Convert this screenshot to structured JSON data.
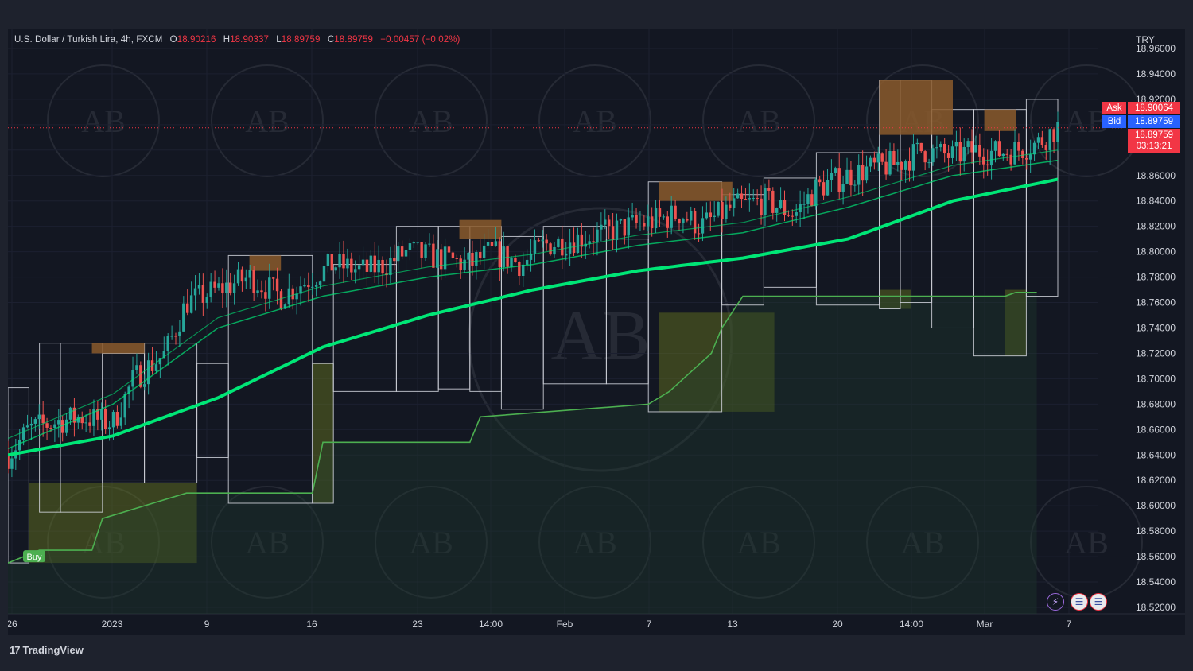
{
  "legend": {
    "symbol": "U.S. Dollar / Turkish Lira, 4h, FXCM",
    "o_label": "O",
    "o": "18.90216",
    "h_label": "H",
    "h": "18.90337",
    "l_label": "L",
    "l": "18.89759",
    "c_label": "C",
    "c": "18.89759",
    "change": "−0.00457 (−0.02%)"
  },
  "price_scale": {
    "currency": "TRY",
    "ask_label": "Ask",
    "ask": "18.90064",
    "bid_label": "Bid",
    "bid": "18.89759",
    "last": "18.89759",
    "countdown": "03:13:21"
  },
  "branding": {
    "logo_text": "TradingView",
    "watermark": "AB"
  },
  "signal": {
    "label": "Buy"
  },
  "colors": {
    "background": "#131722",
    "up": "#26a69a",
    "down": "#ef5350",
    "ma": "#00e676",
    "box_border": "#d1d4dc",
    "zone_resistance": "#8b5a2b",
    "zone_support": "#6b7a1e"
  },
  "chart_data": {
    "type": "candlestick",
    "title": "U.S. Dollar / Turkish Lira, 4h, FXCM",
    "x_ticks": [
      "26",
      "2023",
      "9",
      "16",
      "23",
      "14:00",
      "Feb",
      "7",
      "13",
      "20",
      "14:00",
      "Mar",
      "7"
    ],
    "y_ticks": [
      "18.96000",
      "18.94000",
      "18.92000",
      "18.90000",
      "18.88000",
      "18.86000",
      "18.84000",
      "18.82000",
      "18.80000",
      "18.78000",
      "18.76000",
      "18.74000",
      "18.72000",
      "18.70000",
      "18.68000",
      "18.66000",
      "18.64000",
      "18.62000",
      "18.60000",
      "18.58000",
      "18.56000",
      "18.54000",
      "18.52000"
    ],
    "ylim": [
      18.515,
      18.975
    ],
    "close_path": [
      [
        0.0,
        18.64
      ],
      [
        0.02,
        18.66
      ],
      [
        0.04,
        18.665
      ],
      [
        0.07,
        18.67
      ],
      [
        0.1,
        18.665
      ],
      [
        0.12,
        18.7
      ],
      [
        0.15,
        18.72
      ],
      [
        0.17,
        18.76
      ],
      [
        0.2,
        18.77
      ],
      [
        0.23,
        18.78
      ],
      [
        0.26,
        18.765
      ],
      [
        0.29,
        18.78
      ],
      [
        0.31,
        18.79
      ],
      [
        0.34,
        18.785
      ],
      [
        0.36,
        18.79
      ],
      [
        0.38,
        18.8
      ],
      [
        0.41,
        18.795
      ],
      [
        0.44,
        18.79
      ],
      [
        0.46,
        18.8
      ],
      [
        0.49,
        18.79
      ],
      [
        0.51,
        18.805
      ],
      [
        0.54,
        18.81
      ],
      [
        0.57,
        18.815
      ],
      [
        0.59,
        18.82
      ],
      [
        0.62,
        18.825
      ],
      [
        0.64,
        18.83
      ],
      [
        0.66,
        18.82
      ],
      [
        0.69,
        18.835
      ],
      [
        0.72,
        18.84
      ],
      [
        0.75,
        18.83
      ],
      [
        0.77,
        18.85
      ],
      [
        0.8,
        18.86
      ],
      [
        0.82,
        18.865
      ],
      [
        0.85,
        18.87
      ],
      [
        0.87,
        18.88
      ],
      [
        0.9,
        18.875
      ],
      [
        0.92,
        18.88
      ],
      [
        0.94,
        18.878
      ],
      [
        0.96,
        18.88
      ],
      [
        0.98,
        18.885
      ],
      [
        1.0,
        18.898
      ]
    ],
    "ma_slow": [
      [
        0.0,
        18.64
      ],
      [
        0.1,
        18.655
      ],
      [
        0.2,
        18.685
      ],
      [
        0.3,
        18.725
      ],
      [
        0.4,
        18.75
      ],
      [
        0.5,
        18.77
      ],
      [
        0.6,
        18.785
      ],
      [
        0.7,
        18.795
      ],
      [
        0.8,
        18.81
      ],
      [
        0.9,
        18.84
      ],
      [
        1.0,
        18.857
      ]
    ],
    "ma_mid": [
      [
        0.0,
        18.645
      ],
      [
        0.1,
        18.68
      ],
      [
        0.2,
        18.74
      ],
      [
        0.3,
        18.765
      ],
      [
        0.4,
        18.78
      ],
      [
        0.5,
        18.79
      ],
      [
        0.6,
        18.805
      ],
      [
        0.7,
        18.815
      ],
      [
        0.8,
        18.835
      ],
      [
        0.9,
        18.86
      ],
      [
        1.0,
        18.872
      ]
    ],
    "support_step": [
      [
        0.0,
        18.555
      ],
      [
        0.03,
        18.565
      ],
      [
        0.08,
        18.565
      ],
      [
        0.09,
        18.59
      ],
      [
        0.17,
        18.61
      ],
      [
        0.29,
        18.61
      ],
      [
        0.3,
        18.65
      ],
      [
        0.44,
        18.65
      ],
      [
        0.45,
        18.67
      ],
      [
        0.61,
        18.68
      ],
      [
        0.63,
        18.69
      ],
      [
        0.67,
        18.72
      ],
      [
        0.68,
        18.74
      ],
      [
        0.7,
        18.765
      ],
      [
        0.95,
        18.765
      ],
      [
        0.96,
        18.768
      ],
      [
        0.98,
        18.768
      ]
    ],
    "resistance_zones": [
      [
        0.08,
        0.13,
        18.728,
        18.72
      ],
      [
        0.23,
        0.26,
        18.797,
        18.785
      ],
      [
        0.43,
        0.47,
        18.825,
        18.81
      ],
      [
        0.62,
        0.69,
        18.855,
        18.84
      ],
      [
        0.83,
        0.9,
        18.935,
        18.892
      ],
      [
        0.93,
        0.96,
        18.912,
        18.895
      ]
    ],
    "support_zones": [
      [
        0.02,
        0.18,
        18.618,
        18.555
      ],
      [
        0.29,
        0.31,
        18.712,
        18.602
      ],
      [
        0.62,
        0.73,
        18.752,
        18.674
      ],
      [
        0.83,
        0.86,
        18.77,
        18.755
      ],
      [
        0.95,
        0.97,
        18.77,
        18.718
      ]
    ],
    "legend": "none",
    "grid": true
  }
}
